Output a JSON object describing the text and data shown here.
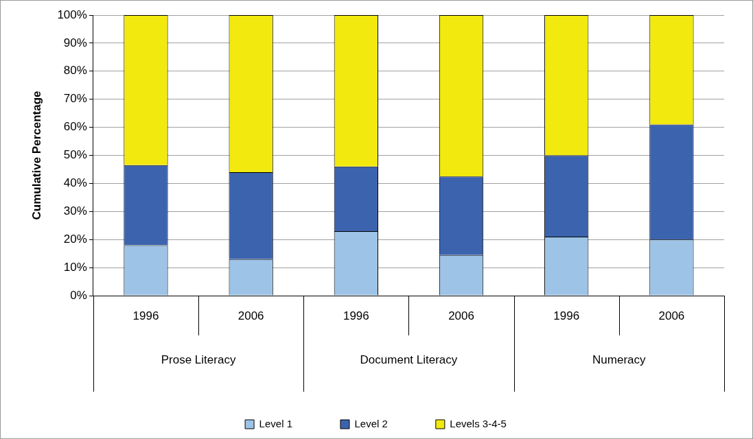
{
  "chart_data": {
    "type": "bar",
    "stacked": true,
    "ylabel": "Cumulative Percentage",
    "categories": [
      "1996",
      "2006",
      "1996",
      "2006",
      "1996",
      "2006"
    ],
    "annotations": [
      "Prose Literacy",
      "Document Literacy",
      "Numeracy"
    ],
    "series": [
      {
        "name": "Level 1",
        "color": "#9dc3e6",
        "values": [
          18,
          13,
          23,
          14.5,
          21,
          20
        ]
      },
      {
        "name": "Level 2",
        "color": "#3c64ae",
        "values": [
          28.5,
          31,
          23,
          28,
          29,
          41
        ]
      },
      {
        "name": "Levels 3-4-5",
        "color": "#f2e90f",
        "values": [
          53.5,
          56,
          54,
          57.5,
          50,
          39
        ]
      }
    ],
    "ylim": [
      0,
      100
    ],
    "yticks": [
      {
        "value": 0,
        "label": "0%"
      },
      {
        "value": 10,
        "label": "10%"
      },
      {
        "value": 20,
        "label": "20%"
      },
      {
        "value": 30,
        "label": "30%"
      },
      {
        "value": 40,
        "label": "40%"
      },
      {
        "value": 50,
        "label": "50%"
      },
      {
        "value": 60,
        "label": "60%"
      },
      {
        "value": 70,
        "label": "70%"
      },
      {
        "value": 80,
        "label": "80%"
      },
      {
        "value": 90,
        "label": "90%"
      },
      {
        "value": 100,
        "label": "100%"
      }
    ],
    "grid": "y",
    "legend": "bottom"
  }
}
